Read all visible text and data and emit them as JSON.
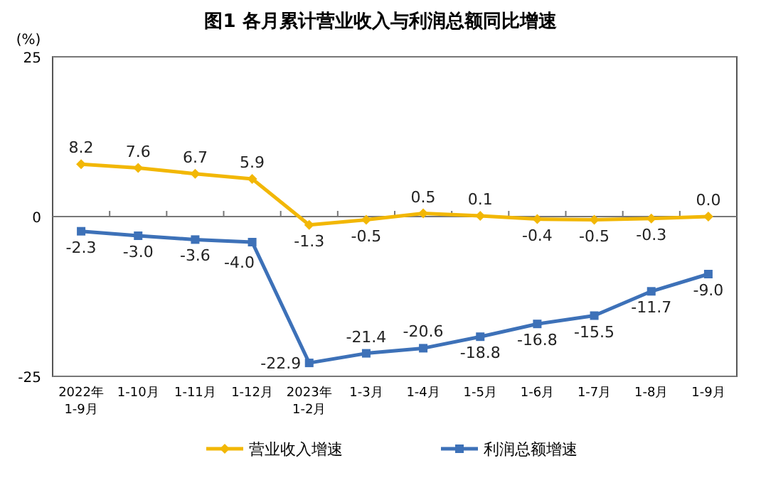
{
  "chart_data": {
    "type": "line",
    "title": "图1  各月累计营业收入与利润总额同比增速",
    "ylabel": "(%)",
    "categories": [
      "2022年\n1-9月",
      "1-10月",
      "1-11月",
      "1-12月",
      "2023年\n1-2月",
      "1-3月",
      "1-4月",
      "1-5月",
      "1-6月",
      "1-7月",
      "1-8月",
      "1-9月"
    ],
    "series": [
      {
        "name": "营业收入增速",
        "color": "#f2b705",
        "marker": "diamond",
        "values": [
          8.2,
          7.6,
          6.7,
          5.9,
          -1.3,
          -0.5,
          0.5,
          0.1,
          -0.4,
          -0.5,
          -0.3,
          0.0
        ],
        "value_labels": [
          "8.2",
          "7.6",
          "6.7",
          "5.9",
          "-1.3",
          "-0.5",
          "0.5",
          "0.1",
          "-0.4",
          "-0.5",
          "-0.3",
          "0.0"
        ]
      },
      {
        "name": "利润总额增速",
        "color": "#3d71b8",
        "marker": "square",
        "values": [
          -2.3,
          -3.0,
          -3.6,
          -4.0,
          -22.9,
          -21.4,
          -20.6,
          -18.8,
          -16.8,
          -15.5,
          -11.7,
          -9.0
        ],
        "value_labels": [
          "-2.3",
          "-3.0",
          "-3.6",
          "-4.0",
          "-22.9",
          "-21.4",
          "-20.6",
          "-18.8",
          "-16.8",
          "-15.5",
          "-11.7",
          "-9.0"
        ]
      }
    ],
    "ylim": [
      -25,
      25
    ],
    "yticks": [
      -25,
      0,
      25
    ],
    "legend": "bottom",
    "grid": "y",
    "line_style": "solid"
  }
}
